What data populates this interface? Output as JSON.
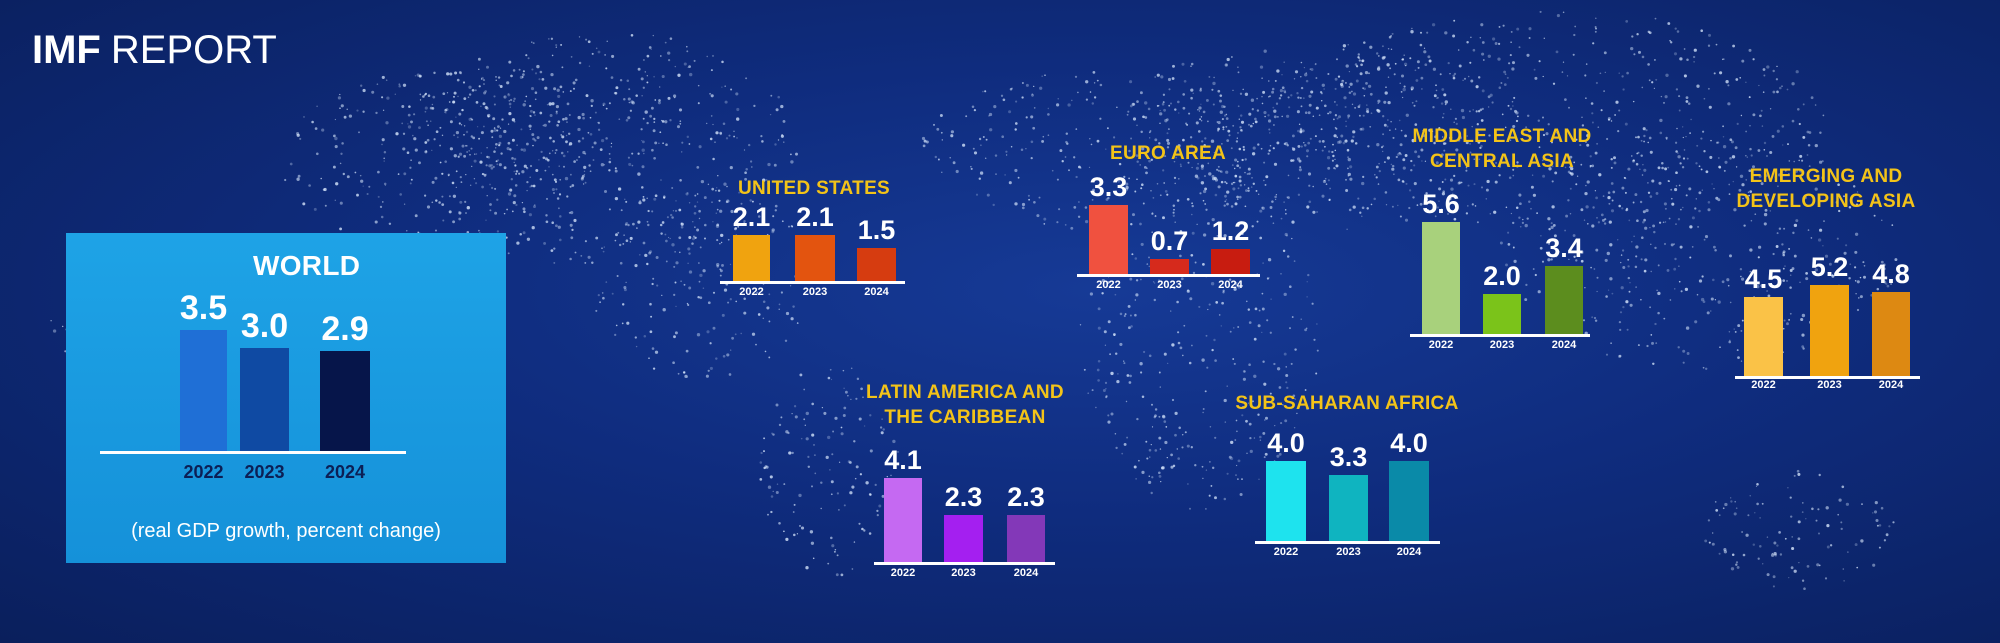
{
  "header": {
    "brand": "IMF",
    "title": "REPORT"
  },
  "world": {
    "note": "(real GDP growth, percent change)"
  },
  "colors": {
    "background": "#0f2c7e",
    "title_yellow": "#f3c318",
    "world_box": "#1591d9"
  },
  "chart_data": [
    {
      "type": "bar",
      "title": "WORLD",
      "categories": [
        "2022",
        "2023",
        "2024"
      ],
      "values": [
        3.5,
        3.0,
        2.9
      ],
      "value_labels": [
        "3.5",
        "3.0",
        "2.9"
      ],
      "colors": [
        "#1f6fd6",
        "#0f4aa3",
        "#06154a"
      ]
    },
    {
      "type": "bar",
      "title": "UNITED STATES",
      "categories": [
        "2022",
        "2023",
        "2024"
      ],
      "values": [
        2.1,
        2.1,
        1.5
      ],
      "value_labels": [
        "2.1",
        "2.1",
        "1.5"
      ],
      "colors": [
        "#f0a30f",
        "#e3540f",
        "#d63c10"
      ]
    },
    {
      "type": "bar",
      "title": "EURO AREA",
      "categories": [
        "2022",
        "2023",
        "2024"
      ],
      "values": [
        3.3,
        0.7,
        1.2
      ],
      "value_labels": [
        "3.3",
        "0.7",
        "1.2"
      ],
      "colors": [
        "#f0513f",
        "#d62a1c",
        "#c81c10"
      ]
    },
    {
      "type": "bar",
      "title": "MIDDLE EAST AND CENTRAL ASIA",
      "title_lines": [
        "MIDDLE EAST AND",
        "CENTRAL ASIA"
      ],
      "categories": [
        "2022",
        "2023",
        "2024"
      ],
      "values": [
        5.6,
        2.0,
        3.4
      ],
      "value_labels": [
        "5.6",
        "2.0",
        "3.4"
      ],
      "colors": [
        "#a8d17c",
        "#7bc31a",
        "#5c8d1e"
      ]
    },
    {
      "type": "bar",
      "title": "EMERGING AND DEVELOPING ASIA",
      "title_lines": [
        "EMERGING AND",
        "DEVELOPING ASIA"
      ],
      "categories": [
        "2022",
        "2023",
        "2024"
      ],
      "values": [
        4.5,
        5.2,
        4.8
      ],
      "value_labels": [
        "4.5",
        "5.2",
        "4.8"
      ],
      "colors": [
        "#fac247",
        "#f0a30f",
        "#dd8912"
      ]
    },
    {
      "type": "bar",
      "title": "LATIN AMERICA AND THE CARIBBEAN",
      "title_lines": [
        "LATIN AMERICA AND",
        "THE CARIBBEAN"
      ],
      "categories": [
        "2022",
        "2023",
        "2024"
      ],
      "values": [
        4.1,
        2.3,
        2.3
      ],
      "value_labels": [
        "4.1",
        "2.3",
        "2.3"
      ],
      "colors": [
        "#c569f2",
        "#a41ff0",
        "#8338b8"
      ]
    },
    {
      "type": "bar",
      "title": "SUB-SAHARAN AFRICA",
      "categories": [
        "2022",
        "2023",
        "2024"
      ],
      "values": [
        4.0,
        3.3,
        4.0
      ],
      "value_labels": [
        "4.0",
        "3.3",
        "4.0"
      ],
      "colors": [
        "#1ee3ee",
        "#0fb4c0",
        "#0a8aa8"
      ]
    }
  ]
}
